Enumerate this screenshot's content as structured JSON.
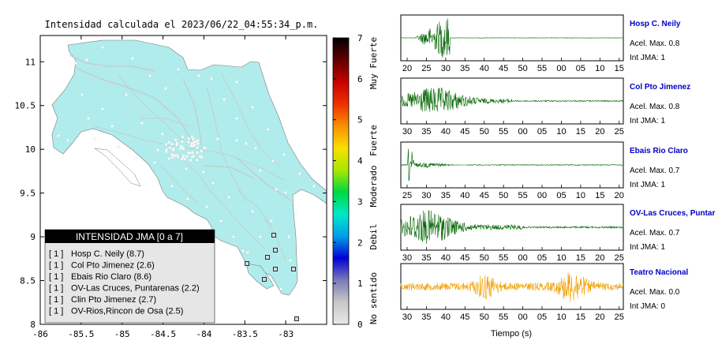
{
  "map": {
    "title": "Intensidad calculada el 2023/06/22_04:55:34_p.m.",
    "x_ticks": [
      "-86",
      "-85.5",
      "-85",
      "-84.5",
      "-84",
      "-83.5",
      "-83"
    ],
    "y_ticks": [
      "11",
      "10.5",
      "10",
      "9.5",
      "9",
      "8.5",
      "8"
    ],
    "xlim": [
      -86,
      -82.5
    ],
    "ylim": [
      8,
      11.3
    ],
    "land_color": "#b0ecec",
    "border_color": "#c8c8c8",
    "marker_color": "#ffffff"
  },
  "legend": {
    "title": "INTENSIDAD JMA [0 a 7]",
    "items": [
      {
        "level": "[ 1 ]",
        "name": "Hosp C. Neily (8.7)"
      },
      {
        "level": "[ 1 ]",
        "name": "Col Pto Jimenez (2.6)"
      },
      {
        "level": "[ 1 ]",
        "name": "Ebais Rio Claro (8.6)"
      },
      {
        "level": "[ 1 ]",
        "name": "OV-Las Cruces, Puntarenas (2.2)"
      },
      {
        "level": "[ 1 ]",
        "name": "Clin Pto Jimenez (2.7)"
      },
      {
        "level": "[ 1 ]",
        "name": "OV-Rios,Rincon de Osa (2.5)"
      }
    ]
  },
  "colorbar": {
    "ticks": [
      "7",
      "6",
      "5",
      "4",
      "3",
      "2",
      "1",
      "0"
    ],
    "labels": [
      "Muy Fuerte",
      "Fuerte",
      "Moderado",
      "Debil",
      "No sentido"
    ],
    "stops": [
      "#e8e8e8",
      "#c8c8c8",
      "#7a7ab8",
      "#0000d8",
      "#00a0e8",
      "#00e8c8",
      "#00d840",
      "#a8e800",
      "#f8e000",
      "#f89000",
      "#f03000",
      "#c80000",
      "#600000",
      "#000000"
    ]
  },
  "stations": [
    {
      "name": "Hosp C. Neily",
      "accel_label": "Acel. Max. 0.8",
      "int_label": "Int JMA: 1",
      "color": "#006400",
      "ticks": [
        "20",
        "25",
        "30",
        "35",
        "40",
        "45",
        "50",
        "55",
        "00",
        "05",
        "10",
        "15"
      ]
    },
    {
      "name": "Col Pto Jimenez",
      "accel_label": "Acel. Max. 0.8",
      "int_label": "Int JMA: 1",
      "color": "#006400",
      "ticks": [
        "30",
        "35",
        "40",
        "45",
        "50",
        "55",
        "00",
        "05",
        "10",
        "15",
        "20",
        "25"
      ]
    },
    {
      "name": "Ebais Rio Claro",
      "accel_label": "Acel. Max. 0.7",
      "int_label": "Int JMA: 1",
      "color": "#006400",
      "ticks": [
        "25",
        "30",
        "35",
        "40",
        "45",
        "50",
        "55",
        "00",
        "05",
        "10",
        "15",
        "20"
      ]
    },
    {
      "name": "OV-Las Cruces, Puntar",
      "accel_label": "Acel. Max. 0.7",
      "int_label": "Int JMA: 1",
      "color": "#006400",
      "ticks": [
        "30",
        "35",
        "40",
        "45",
        "50",
        "55",
        "00",
        "05",
        "10",
        "15",
        "20",
        "25"
      ]
    },
    {
      "name": "Teatro Nacional",
      "accel_label": "Acel. Max. 0.0",
      "int_label": "Int JMA: 0",
      "color": "#f0a000",
      "ticks": [
        "30",
        "35",
        "40",
        "45",
        "50",
        "55",
        "00",
        "05",
        "10",
        "15",
        "20",
        "25"
      ]
    }
  ],
  "xlabel": "Tiempo (s)"
}
